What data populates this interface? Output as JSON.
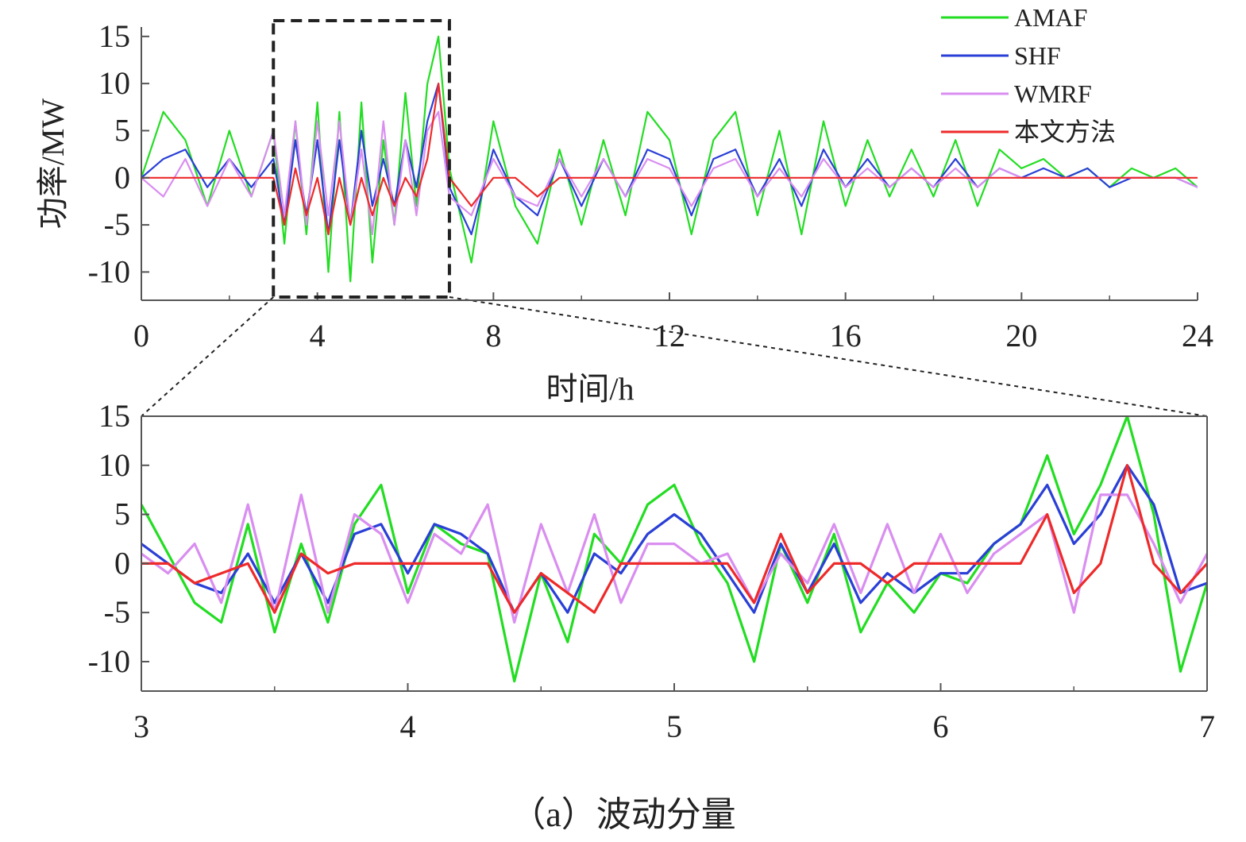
{
  "caption": "（a）波动分量",
  "colors": {
    "AMAF": "#22dd22",
    "SHF": "#2a3fd6",
    "WMRF": "#d98ef0",
    "本文方法": "#ee2a2a",
    "axis": "#555555",
    "zoom_box": "#222222"
  },
  "chart_data": [
    {
      "type": "line",
      "panel": "overview",
      "xlabel": "时间/h",
      "ylabel": "功率/MW",
      "xlim": [
        0,
        24
      ],
      "ylim": [
        -13,
        16
      ],
      "xticks": [
        "0",
        "4",
        "8",
        "12",
        "16",
        "20",
        "24"
      ],
      "yticks": [
        "15",
        "10",
        "5",
        "0",
        "-5",
        "-10"
      ],
      "legend": {
        "position": "top-right",
        "entries": [
          "AMAF",
          "SHF",
          "WMRF",
          "本文方法"
        ]
      },
      "zoom_region": {
        "x": [
          3,
          7
        ],
        "y": [
          -13,
          16
        ]
      },
      "x": [
        0,
        0.5,
        1,
        1.5,
        2,
        2.5,
        3,
        3.25,
        3.5,
        3.75,
        4,
        4.25,
        4.5,
        4.75,
        5,
        5.25,
        5.5,
        5.75,
        6,
        6.25,
        6.5,
        6.75,
        7,
        7.5,
        8,
        8.5,
        9,
        9.5,
        10,
        10.5,
        11,
        11.5,
        12,
        12.5,
        13,
        13.5,
        14,
        14.5,
        15,
        15.5,
        16,
        16.5,
        17,
        17.5,
        18,
        18.5,
        19,
        19.5,
        20,
        20.5,
        21,
        21.5,
        22,
        22.5,
        23,
        23.5,
        24
      ],
      "series": [
        {
          "name": "AMAF",
          "values": [
            0,
            7,
            4,
            -3,
            5,
            -2,
            5,
            -7,
            6,
            -6,
            8,
            -10,
            7,
            -11,
            8,
            -9,
            4,
            -5,
            9,
            -3,
            10,
            15,
            1,
            -9,
            6,
            -3,
            -7,
            3,
            -5,
            4,
            -4,
            7,
            4,
            -6,
            4,
            7,
            -4,
            5,
            -6,
            6,
            -3,
            4,
            -2,
            3,
            -2,
            4,
            -3,
            3,
            1,
            2,
            0,
            1,
            -1,
            1,
            0,
            1,
            -1
          ]
        },
        {
          "name": "SHF",
          "values": [
            0,
            2,
            3,
            -1,
            2,
            -1,
            2,
            -5,
            4,
            -4,
            4,
            -6,
            4,
            -5,
            5,
            -3,
            2,
            -3,
            4,
            -1,
            6,
            10,
            -1,
            -6,
            3,
            -2,
            -4,
            2,
            -3,
            2,
            -2,
            3,
            2,
            -4,
            2,
            3,
            -2,
            2,
            -3,
            3,
            -1,
            2,
            -1,
            1,
            -1,
            2,
            -1,
            1,
            0,
            1,
            0,
            1,
            -1,
            0,
            0,
            0,
            -1
          ]
        },
        {
          "name": "WMRF",
          "values": [
            0,
            -2,
            2,
            -3,
            2,
            -2,
            5,
            -4,
            6,
            -5,
            6,
            -4,
            6,
            -5,
            3,
            -6,
            6,
            -5,
            4,
            -4,
            5,
            7,
            -2,
            -4,
            2,
            -2,
            -3,
            2,
            -2,
            2,
            -2,
            2,
            1,
            -3,
            1,
            2,
            -2,
            1,
            -2,
            2,
            -1,
            1,
            -1,
            1,
            -1,
            1,
            -1,
            1,
            0,
            0,
            0,
            0,
            0,
            0,
            0,
            0,
            -1
          ]
        },
        {
          "name": "本文方法",
          "values": [
            0,
            0,
            0,
            0,
            0,
            0,
            0,
            -5,
            1,
            -4,
            0,
            -6,
            0,
            -5,
            0,
            -4,
            0,
            -3,
            0,
            -2,
            2,
            10,
            0,
            -3,
            0,
            0,
            -2,
            0,
            0,
            0,
            0,
            0,
            0,
            0,
            0,
            0,
            0,
            0,
            0,
            0,
            0,
            0,
            0,
            0,
            0,
            0,
            0,
            0,
            0,
            0,
            0,
            0,
            0,
            0,
            0,
            0,
            0
          ]
        }
      ]
    },
    {
      "type": "line",
      "panel": "zoom",
      "xlim": [
        3,
        7
      ],
      "ylim": [
        -13,
        15
      ],
      "xticks": [
        "3",
        "4",
        "5",
        "6",
        "7"
      ],
      "yticks": [
        "15",
        "10",
        "5",
        "0",
        "-5",
        "-10"
      ],
      "x": [
        3.0,
        3.1,
        3.2,
        3.3,
        3.4,
        3.5,
        3.6,
        3.7,
        3.8,
        3.9,
        4.0,
        4.1,
        4.2,
        4.3,
        4.4,
        4.5,
        4.6,
        4.7,
        4.8,
        4.9,
        5.0,
        5.1,
        5.2,
        5.3,
        5.4,
        5.5,
        5.6,
        5.7,
        5.8,
        5.9,
        6.0,
        6.1,
        6.2,
        6.3,
        6.4,
        6.5,
        6.6,
        6.7,
        6.8,
        6.9,
        7.0
      ],
      "series": [
        {
          "name": "AMAF",
          "values": [
            6,
            1,
            -4,
            -6,
            4,
            -7,
            2,
            -6,
            4,
            8,
            -3,
            4,
            2,
            1,
            -12,
            -1,
            -8,
            3,
            0,
            6,
            8,
            2,
            -2,
            -10,
            2,
            -4,
            3,
            -7,
            -2,
            -5,
            -1,
            -2,
            2,
            4,
            11,
            3,
            8,
            15,
            5,
            -11,
            -2
          ]
        },
        {
          "name": "SHF",
          "values": [
            2,
            0,
            -2,
            -3,
            1,
            -4,
            1,
            -4,
            3,
            4,
            -1,
            4,
            3,
            1,
            -5,
            -1,
            -5,
            1,
            -1,
            3,
            5,
            3,
            -1,
            -5,
            2,
            -3,
            2,
            -4,
            -1,
            -3,
            -1,
            -1,
            2,
            4,
            8,
            2,
            5,
            10,
            6,
            -3,
            -2
          ]
        },
        {
          "name": "WMRF",
          "values": [
            1,
            -1,
            2,
            -4,
            6,
            -5,
            7,
            -5,
            5,
            3,
            -4,
            3,
            1,
            6,
            -6,
            4,
            -3,
            5,
            -4,
            2,
            2,
            0,
            1,
            -4,
            1,
            -2,
            4,
            -3,
            4,
            -3,
            3,
            -3,
            1,
            3,
            5,
            -5,
            7,
            7,
            2,
            -4,
            1
          ]
        },
        {
          "name": "本文方法",
          "values": [
            0,
            0,
            -2,
            -1,
            0,
            -5,
            1,
            -1,
            0,
            0,
            0,
            0,
            0,
            0,
            -5,
            -1,
            -3,
            -5,
            0,
            0,
            0,
            0,
            0,
            -4,
            3,
            -3,
            0,
            0,
            -2,
            0,
            0,
            0,
            0,
            0,
            5,
            -3,
            0,
            10,
            0,
            -3,
            0
          ]
        }
      ]
    }
  ]
}
